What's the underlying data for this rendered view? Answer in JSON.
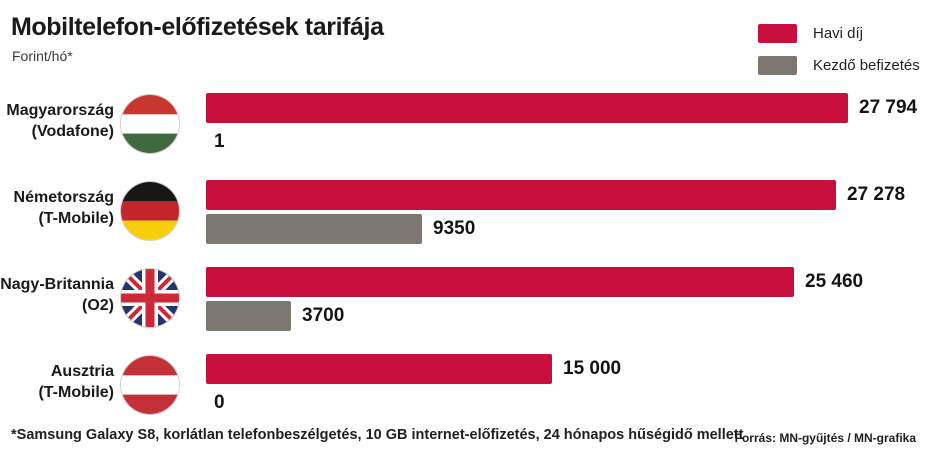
{
  "header": {
    "title": "Mobiltelefon-előfizetések tarifája",
    "subtitle": "Forint/hó*"
  },
  "legend": [
    {
      "label": "Havi díj",
      "color": "#C80E3C"
    },
    {
      "label": "Kezdő befizetés",
      "color": "#7C7870"
    }
  ],
  "chart_data": {
    "type": "bar",
    "orientation": "horizontal",
    "title": "Mobiltelefon-előfizetések tarifája",
    "unit_label": "Forint/hó*",
    "xlim": [
      0,
      27794
    ],
    "grid": false,
    "legend_position": "top-right",
    "categories": [
      "Magyarország (Vodafone)",
      "Németország (T-Mobile)",
      "Nagy-Britannia (O2)",
      "Ausztria (T-Mobile)"
    ],
    "series": [
      {
        "name": "Havi díj",
        "color": "#C80E3C",
        "values": [
          27794,
          27278,
          25460,
          15000
        ]
      },
      {
        "name": "Kezdő befizetés",
        "color": "#7C7870",
        "values": [
          1,
          9350,
          3700,
          0
        ]
      }
    ],
    "max_value": 27794,
    "rows": [
      {
        "country": "Magyarország",
        "operator": "(Vodafone)",
        "flag": "hungary",
        "havi": 27794,
        "havi_display": "27 794",
        "kezdo": 1,
        "kezdo_display": "1"
      },
      {
        "country": "Németország",
        "operator": "(T-Mobile)",
        "flag": "germany",
        "havi": 27278,
        "havi_display": "27 278",
        "kezdo": 9350,
        "kezdo_display": "9350"
      },
      {
        "country": "Nagy-Britannia",
        "operator": "(O2)",
        "flag": "uk",
        "havi": 25460,
        "havi_display": "25 460",
        "kezdo": 3700,
        "kezdo_display": "3700"
      },
      {
        "country": "Ausztria",
        "operator": "(T-Mobile)",
        "flag": "austria",
        "havi": 15000,
        "havi_display": "15 000",
        "kezdo": 0,
        "kezdo_display": "0"
      }
    ]
  },
  "footer": {
    "footnote": "*Samsung Galaxy S8, korlátlan telefonbeszélgetés, 10 GB internet-előfizetés, 24 hónapos hűségidő mellett",
    "source": "Forrás: MN-gyűjtés / MN-grafika"
  }
}
